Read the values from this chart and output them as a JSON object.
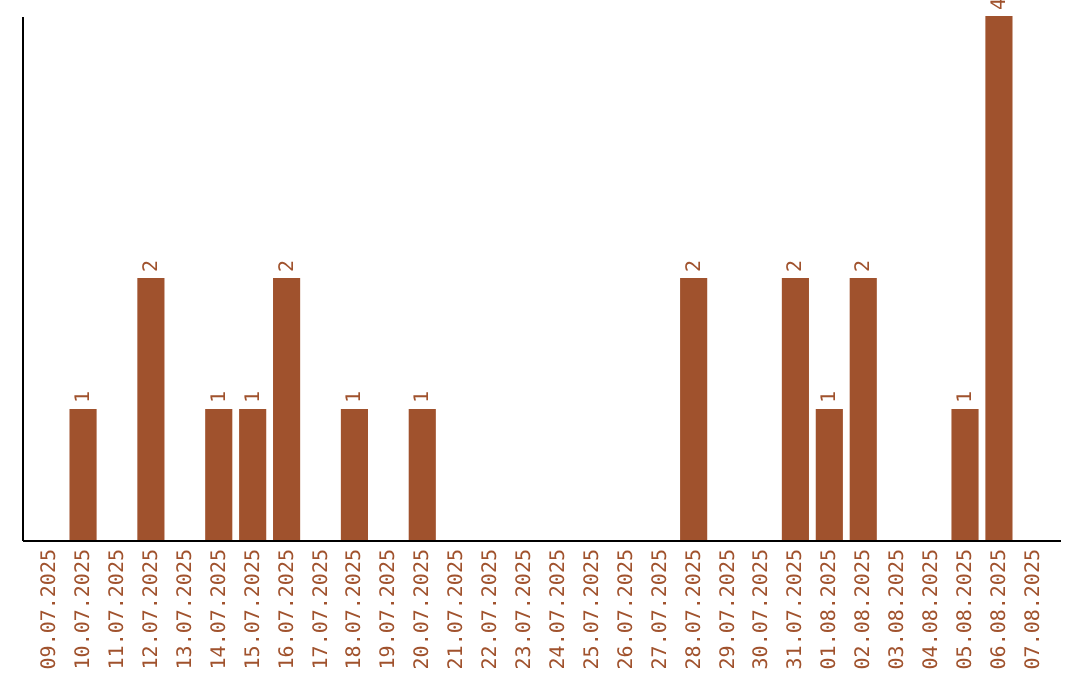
{
  "chart_data": {
    "type": "bar",
    "categories": [
      "09.07.2025",
      "10.07.2025",
      "11.07.2025",
      "12.07.2025",
      "13.07.2025",
      "14.07.2025",
      "15.07.2025",
      "16.07.2025",
      "17.07.2025",
      "18.07.2025",
      "19.07.2025",
      "20.07.2025",
      "21.07.2025",
      "22.07.2025",
      "23.07.2025",
      "24.07.2025",
      "25.07.2025",
      "26.07.2025",
      "27.07.2025",
      "28.07.2025",
      "29.07.2025",
      "30.07.2025",
      "31.07.2025",
      "01.08.2025",
      "02.08.2025",
      "03.08.2025",
      "04.08.2025",
      "05.08.2025",
      "06.08.2025",
      "07.08.2025"
    ],
    "values": [
      0,
      1,
      0,
      2,
      0,
      1,
      1,
      2,
      0,
      1,
      0,
      1,
      0,
      0,
      0,
      0,
      0,
      0,
      0,
      2,
      0,
      0,
      2,
      1,
      2,
      0,
      0,
      1,
      4,
      0
    ],
    "value_labels": [
      null,
      "1",
      null,
      "2",
      null,
      "1",
      "1",
      "2",
      null,
      "1",
      null,
      "1",
      null,
      null,
      null,
      null,
      null,
      null,
      null,
      "2",
      null,
      null,
      "2",
      "1",
      "2",
      null,
      null,
      "1",
      "4",
      null
    ],
    "color": "#a0522d"
  }
}
